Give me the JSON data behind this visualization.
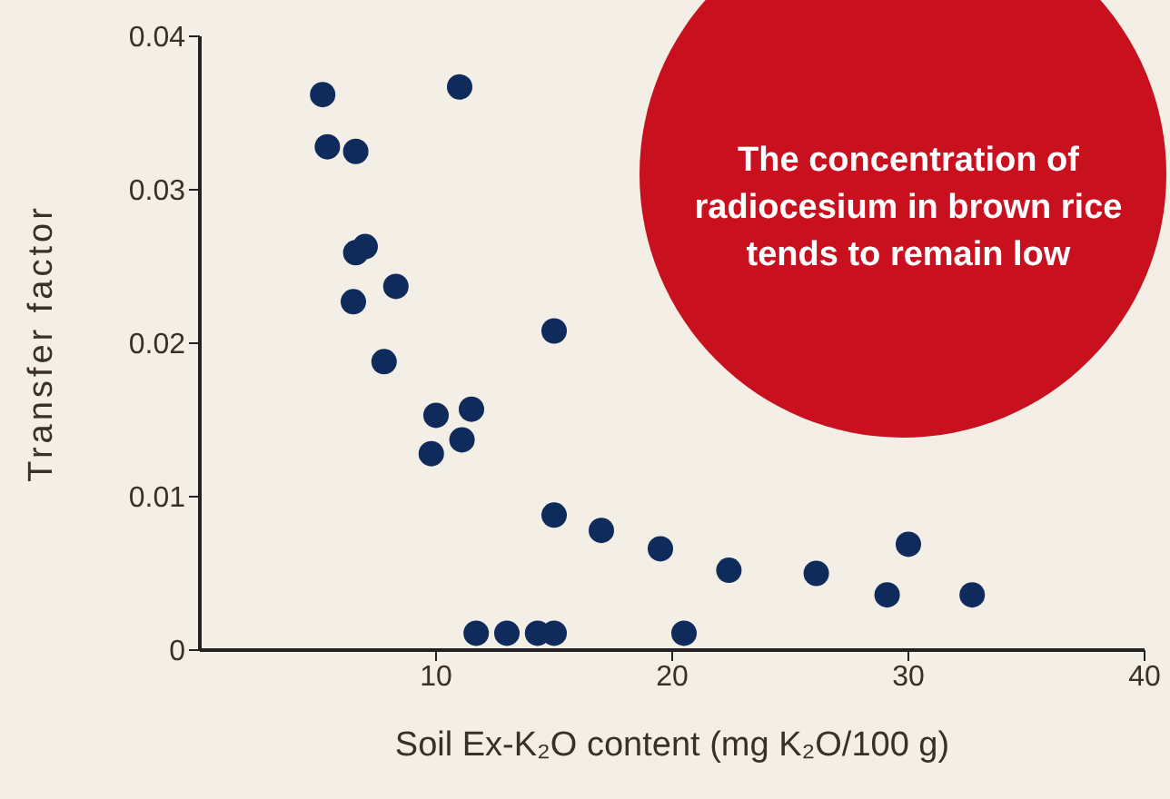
{
  "chart_data": {
    "type": "scatter",
    "xlabel": "Soil Ex-K₂O content (mg K₂O/100 g)",
    "ylabel": "Transfer factor",
    "annotations": [
      "The concentration of radiocesium in brown rice tends to remain low"
    ],
    "x": [
      5.2,
      5.4,
      6.6,
      11.0,
      6.6,
      7.0,
      6.5,
      8.3,
      15.0,
      7.8,
      10.0,
      11.5,
      11.1,
      9.8,
      15.0,
      17.0,
      19.5,
      22.4,
      26.1,
      29.1,
      30.0,
      32.7,
      11.7,
      13.0,
      14.3,
      15.0,
      20.5
    ],
    "series": [
      {
        "color": "#0f2b5b",
        "values": [
          0.0362,
          0.0328,
          0.0325,
          0.0367,
          0.0259,
          0.0263,
          0.0227,
          0.0237,
          0.0208,
          0.0188,
          0.0153,
          0.0157,
          0.0137,
          0.0128,
          0.0088,
          0.0078,
          0.0066,
          0.0052,
          0.005,
          0.0036,
          0.0069,
          0.0036,
          0.0011,
          0.0011,
          0.0011,
          0.0011,
          0.0011
        ]
      }
    ],
    "xlim": [
      0,
      40
    ],
    "xticks": [
      10,
      20,
      30,
      40
    ],
    "ylim": [
      0,
      0.04
    ],
    "yticks": [
      0,
      0.01,
      0.02,
      0.03,
      0.04
    ],
    "marker": "circle",
    "grid": false,
    "legend": false
  }
}
